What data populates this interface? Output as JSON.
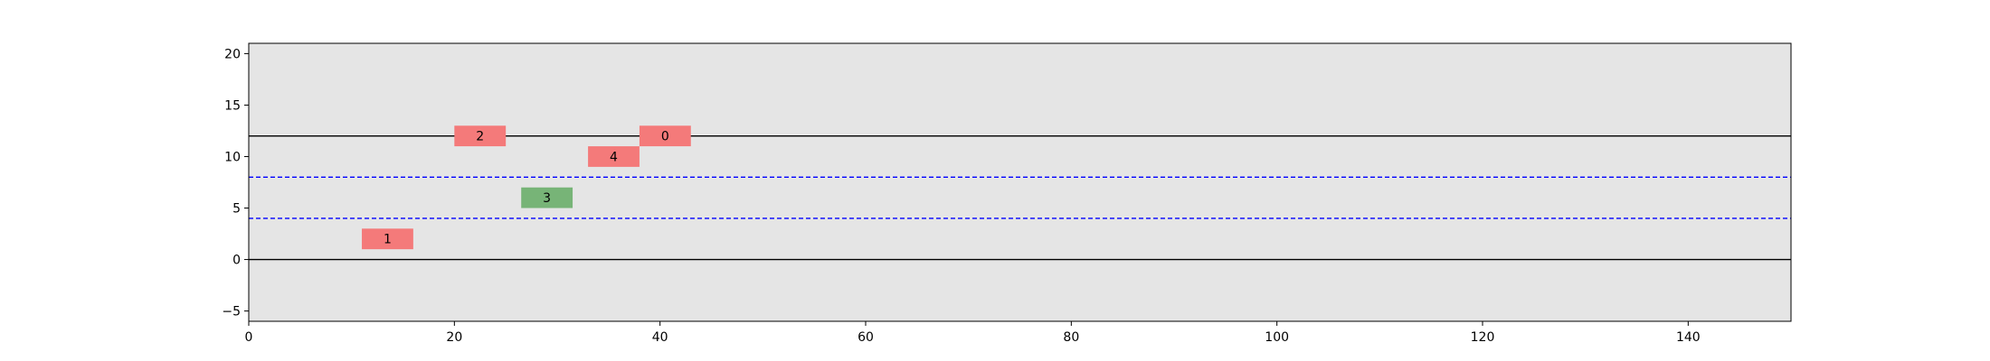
{
  "chart_data": {
    "type": "scatter",
    "title": "",
    "xlabel": "",
    "ylabel": "",
    "xlim": [
      0,
      150
    ],
    "ylim": [
      -6,
      21
    ],
    "x_ticks": [
      0,
      20,
      40,
      60,
      80,
      100,
      120,
      140
    ],
    "y_ticks": [
      -5,
      0,
      5,
      10,
      15,
      20
    ],
    "x_tick_labels": [
      "0",
      "20",
      "40",
      "60",
      "80",
      "100",
      "120",
      "140"
    ],
    "y_tick_labels": [
      "−5",
      "0",
      "5",
      "10",
      "15",
      "20"
    ],
    "background_color": "#e5e5e5",
    "horizontal_lines": [
      {
        "y": 0,
        "style": "solid",
        "color": "#000000"
      },
      {
        "y": 12,
        "style": "solid",
        "color": "#000000"
      },
      {
        "y": 4,
        "style": "dashed",
        "color": "#0000ff"
      },
      {
        "y": 8,
        "style": "dashed",
        "color": "#0000ff"
      }
    ],
    "boxes": [
      {
        "label": "0",
        "x": 38,
        "width": 5,
        "y": 11,
        "height": 2,
        "color": "#f47a7a"
      },
      {
        "label": "1",
        "x": 11,
        "width": 5,
        "y": 1,
        "height": 2,
        "color": "#f47a7a"
      },
      {
        "label": "2",
        "x": 20,
        "width": 5,
        "y": 11,
        "height": 2,
        "color": "#f47a7a"
      },
      {
        "label": "3",
        "x": 26.5,
        "width": 5,
        "y": 5,
        "height": 2,
        "color": "#77b477"
      },
      {
        "label": "4",
        "x": 33,
        "width": 5,
        "y": 9,
        "height": 2,
        "color": "#f47a7a"
      }
    ]
  }
}
